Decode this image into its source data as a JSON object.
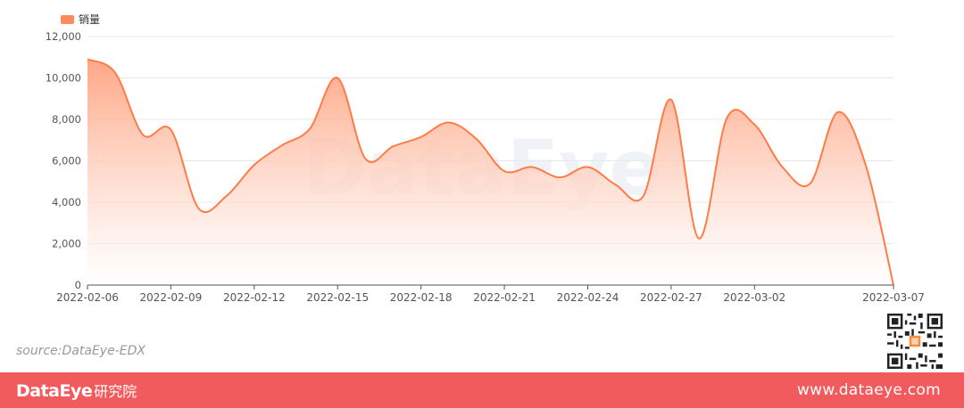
{
  "legend": {
    "label": "销量"
  },
  "watermark": "DataEye",
  "source": "source:DataEye-EDX",
  "footer": {
    "brand": "DataEye",
    "brand_sub": "研究院",
    "site": "www.dataeye.com"
  },
  "colors": {
    "line": "#ff7b47",
    "area_top": "#ffa27f",
    "grid": "#e8e8e8",
    "axis": "#555555",
    "footer_bg": "#f25b5e",
    "legend_swatch": "#ff8a5f"
  },
  "chart_data": {
    "type": "area",
    "smooth": true,
    "grid": true,
    "legend_position": "top-left",
    "series": [
      {
        "name": "销量",
        "x": [
          "2022-02-06",
          "2022-02-07",
          "2022-02-08",
          "2022-02-09",
          "2022-02-10",
          "2022-02-11",
          "2022-02-12",
          "2022-02-13",
          "2022-02-14",
          "2022-02-15",
          "2022-02-16",
          "2022-02-17",
          "2022-02-18",
          "2022-02-19",
          "2022-02-20",
          "2022-02-21",
          "2022-02-22",
          "2022-02-23",
          "2022-02-24",
          "2022-02-25",
          "2022-02-26",
          "2022-02-27",
          "2022-02-28",
          "2022-03-01",
          "2022-03-02",
          "2022-03-03",
          "2022-03-04",
          "2022-03-05",
          "2022-03-06",
          "2022-03-07"
        ],
        "values": [
          10900,
          10250,
          7250,
          7500,
          3700,
          4300,
          5800,
          6750,
          7550,
          10000,
          6100,
          6700,
          7150,
          7850,
          7050,
          5500,
          5700,
          5200,
          5700,
          4850,
          4300,
          8950,
          2250,
          8050,
          7750,
          5700,
          4900,
          8350,
          5800,
          0
        ]
      }
    ],
    "x_tick_labels": [
      "2022-02-06",
      "2022-02-09",
      "2022-02-12",
      "2022-02-15",
      "2022-02-18",
      "2022-02-21",
      "2022-02-24",
      "2022-02-27",
      "2022-03-02",
      "2022-03-07"
    ],
    "y_tick_labels": [
      "0",
      "2,000",
      "4,000",
      "6,000",
      "8,000",
      "10,000",
      "12,000"
    ],
    "ylim": [
      0,
      12000
    ]
  }
}
